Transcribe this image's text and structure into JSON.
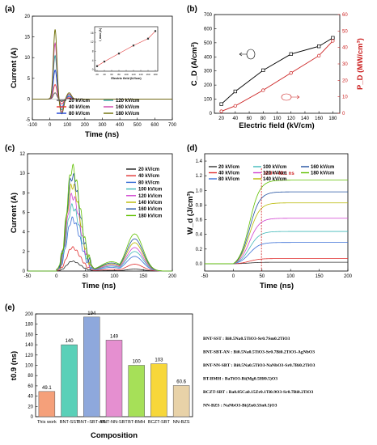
{
  "chart_data": [
    {
      "type": "line",
      "panel": "(a)",
      "xlabel": "Time (ns)",
      "ylabel": "Current (A)",
      "xlim": [
        -100,
        700
      ],
      "ylim": [
        -5,
        20
      ],
      "xticks": [
        -100,
        0,
        100,
        200,
        300,
        400,
        500,
        600,
        700
      ],
      "yticks": [
        -5,
        0,
        5,
        10,
        15,
        20
      ],
      "series": [
        {
          "name": "20 kV/cm",
          "color": "#555555",
          "peak": 1.5,
          "undershoot": -0.6
        },
        {
          "name": "40 kV/cm",
          "color": "#ee3333",
          "peak": 3.5,
          "undershoot": -1.2
        },
        {
          "name": "80 kV/cm",
          "color": "#1a3fd6",
          "peak": 7.0,
          "undershoot": -2.0
        },
        {
          "name": "120 kV/cm",
          "color": "#2f9e9e",
          "peak": 10.5,
          "undershoot": -2.6
        },
        {
          "name": "160 kV/cm",
          "color": "#cc44aa",
          "peak": 13.5,
          "undershoot": -3.1
        },
        {
          "name": "180 kV/cm",
          "color": "#6b6b00",
          "peak": 16.8,
          "undershoot": -3.6
        }
      ],
      "legend_placement": "bottom-center",
      "inset": {
        "xlabel": "Electric field (kV/cm)",
        "ylabel": "I_max (A)",
        "xlim": [
          20,
          180
        ],
        "ylim": [
          0,
          18
        ],
        "xticks": [
          20,
          40,
          60,
          80,
          100,
          120,
          140,
          160,
          180
        ],
        "yticks": [
          0,
          4,
          8,
          12,
          16
        ],
        "x": [
          20,
          40,
          80,
          120,
          160,
          180
        ],
        "y": [
          1.5,
          3.5,
          7.0,
          10.5,
          13.5,
          16.8
        ]
      }
    },
    {
      "type": "scatter",
      "panel": "(b)",
      "xlabel": "Electric field (kV/cm)",
      "ylabel_left": "C_D (A/cm²)",
      "ylabel_right": "P_D (MW/cm³)",
      "xlim": [
        10,
        190
      ],
      "ylim_left": [
        0,
        700
      ],
      "ylim_right": [
        0,
        60
      ],
      "xticks": [
        20,
        40,
        60,
        80,
        100,
        120,
        140,
        160,
        180
      ],
      "yticks_left": [
        0,
        100,
        200,
        300,
        400,
        500,
        600,
        700
      ],
      "yticks_right": [
        0,
        10,
        20,
        30,
        40,
        50,
        60
      ],
      "series": [
        {
          "name": "C_D",
          "color": "#000000",
          "x": [
            20,
            40,
            80,
            120,
            160,
            180
          ],
          "y": [
            65,
            155,
            305,
            420,
            475,
            535
          ]
        },
        {
          "name": "P_D",
          "color": "#cc2222",
          "x": [
            20,
            40,
            80,
            120,
            160,
            180
          ],
          "y": [
            1.2,
            4.5,
            14.0,
            24.5,
            35.0,
            44.0
          ]
        }
      ]
    },
    {
      "type": "line",
      "panel": "(c)",
      "xlabel": "Time (ns)",
      "ylabel": "Current (A)",
      "xlim": [
        -50,
        200
      ],
      "ylim": [
        0,
        12
      ],
      "xticks": [
        -50,
        0,
        50,
        100,
        150,
        200
      ],
      "yticks": [
        0,
        2,
        4,
        6,
        8,
        10,
        12
      ],
      "legend_placement": "top-right",
      "series": [
        {
          "name": "20 kV/cm",
          "color": "#222222",
          "peak": 1.0,
          "second": 0.2
        },
        {
          "name": "40 kV/cm",
          "color": "#e03030",
          "peak": 2.4,
          "second": 0.7
        },
        {
          "name": "80 kV/cm",
          "color": "#3a6fd6",
          "peak": 5.3,
          "second": 1.5
        },
        {
          "name": "100 kV/cm",
          "color": "#3fb8b8",
          "peak": 6.6,
          "second": 2.0
        },
        {
          "name": "120 kV/cm",
          "color": "#d040d0",
          "peak": 7.7,
          "second": 2.4
        },
        {
          "name": "140 kV/cm",
          "color": "#b8b800",
          "peak": 8.8,
          "second": 2.9
        },
        {
          "name": "160 kV/cm",
          "color": "#2050a0",
          "peak": 9.7,
          "second": 3.3
        },
        {
          "name": "180 kV/cm",
          "color": "#60c000",
          "peak": 10.5,
          "second": 3.8
        }
      ]
    },
    {
      "type": "line",
      "panel": "(d)",
      "xlabel": "Time (ns)",
      "ylabel": "W_d (J/cm³)",
      "xlim": [
        -50,
        200
      ],
      "ylim": [
        -0.1,
        1.5
      ],
      "xticks": [
        -50,
        0,
        50,
        100,
        150,
        200
      ],
      "yticks": [
        0.0,
        0.2,
        0.4,
        0.6,
        0.8,
        1.0,
        1.2,
        1.4
      ],
      "annotation": "t0.9 = 49.1 ns",
      "annotation_x": 49.1,
      "legend_placement": "top",
      "series": [
        {
          "name": "20 kV/cm",
          "color": "#333333",
          "final": 0.02
        },
        {
          "name": "40 kV/cm",
          "color": "#e03030",
          "final": 0.07
        },
        {
          "name": "80 kV/cm",
          "color": "#3a6fd6",
          "final": 0.29
        },
        {
          "name": "100 kV/cm",
          "color": "#3fb8b8",
          "final": 0.44
        },
        {
          "name": "120 kV/cm",
          "color": "#d040d0",
          "final": 0.62
        },
        {
          "name": "140 kV/cm",
          "color": "#b8b800",
          "final": 0.83
        },
        {
          "name": "160 kV/cm",
          "color": "#2050a0",
          "final": 0.98
        },
        {
          "name": "180 kV/cm",
          "color": "#60c000",
          "final": 1.14
        }
      ]
    },
    {
      "type": "bar",
      "panel": "(e)",
      "xlabel": "Composition",
      "ylabel": "t0.9 (ns)",
      "ylim": [
        0,
        200
      ],
      "yticks": [
        0,
        20,
        40,
        60,
        80,
        100,
        120,
        140,
        160,
        180,
        200
      ],
      "categories": [
        "This work",
        "BNT-SST",
        "BNT–SBT-AN",
        "BNT-NN-SBT",
        "BT-BMH",
        "BCZT-SBT",
        "NN-BZS"
      ],
      "values": [
        49.1,
        140,
        194,
        149,
        100,
        103,
        60.6
      ],
      "value_labels": [
        "49.1",
        "140",
        "194",
        "149",
        "100",
        "103",
        "60.6"
      ],
      "colors": [
        "#f5a07a",
        "#5ad0b8",
        "#8ea8dc",
        "#e58fd0",
        "#a6e058",
        "#f7d73a",
        "#e8d2a8"
      ],
      "notes": [
        "BNT-SST : Bi0.5Na0.5TiO3-Sr0.7Sm0.2TiO3",
        "BNT-SBT-AN : Bi0.5Na0.5TiO3-Sr0.7Bi0.2TiO3-AgNbO3",
        "BNT-NN-SBT : Bi0.5Na0.5TiO3-NaNbO3-Sr0.7Bi0.2TiO3",
        "BT-BMH : BaTiO3-Bi(Mg0.5Hf0.5)O3",
        "BCZT-SBT : Ba0.85Ca0.15Zr0.1Ti0.9O3-Sr0.7Bi0.2TiO3",
        "NN-BZS : NaNbO3-Bi(Zn0.5Sn0.5)O3"
      ]
    }
  ]
}
